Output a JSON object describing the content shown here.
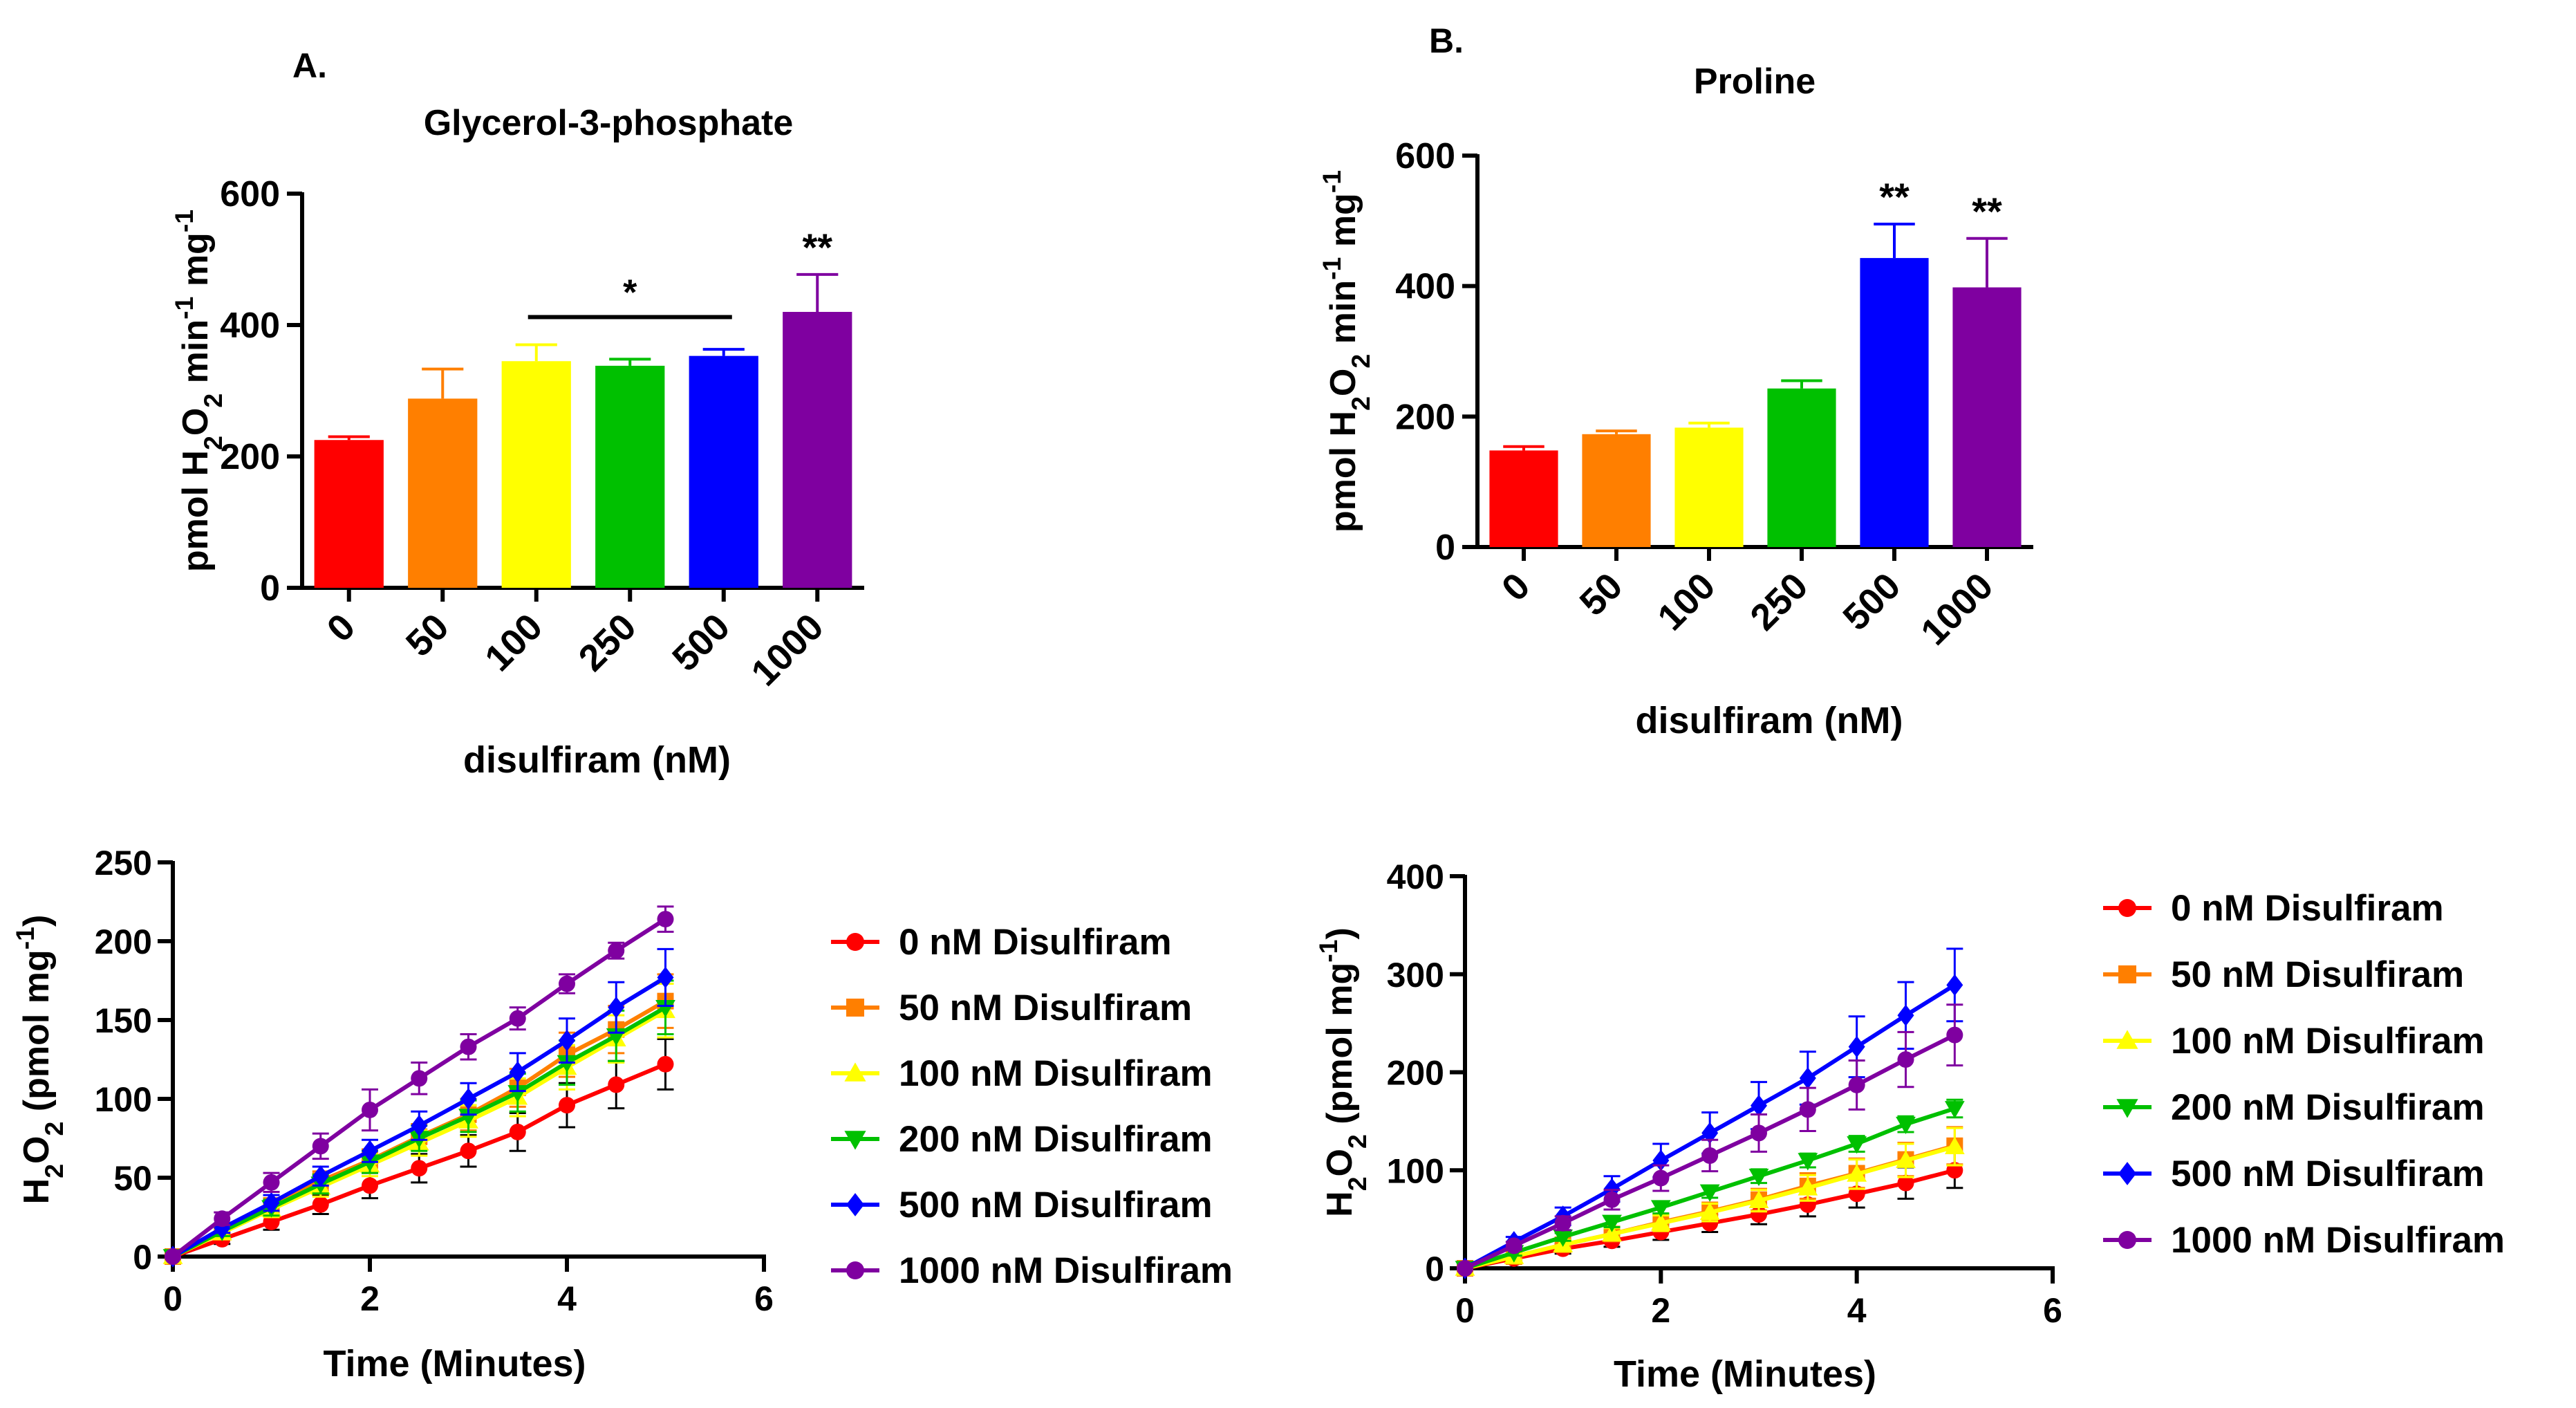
{
  "panel_labels": {
    "a": "A.",
    "b": "B."
  },
  "chart_data": [
    {
      "id": "barA",
      "type": "bar",
      "title": "Glycerol-3-phosphate",
      "xlabel": "disulfiram (nM)",
      "ylabel": "pmol H2O2 min-1 mg-1",
      "categories": [
        "0",
        "50",
        "100",
        "250",
        "500",
        "1000"
      ],
      "values": [
        225,
        288,
        345,
        338,
        353,
        420
      ],
      "errors": [
        5,
        45,
        25,
        10,
        10,
        57
      ],
      "colors": [
        "#ff0000",
        "#ff7f00",
        "#ffff00",
        "#00c000",
        "#0000ff",
        "#7f00a0"
      ],
      "ylim": [
        0,
        600
      ],
      "yticks": [
        0,
        200,
        400,
        600
      ],
      "significance": [
        {
          "label": "*",
          "type": "bracket",
          "from": 2,
          "to": 4
        },
        {
          "label": "**",
          "type": "single",
          "index": 5
        }
      ]
    },
    {
      "id": "barB",
      "type": "bar",
      "title": "Proline",
      "xlabel": "disulfiram (nM)",
      "ylabel": "pmol H2O2 min-1 mg-1",
      "categories": [
        "0",
        "50",
        "100",
        "250",
        "500",
        "1000"
      ],
      "values": [
        148,
        173,
        183,
        243,
        443,
        398
      ],
      "errors": [
        6,
        5,
        7,
        12,
        52,
        75
      ],
      "colors": [
        "#ff0000",
        "#ff7f00",
        "#ffff00",
        "#00c000",
        "#0000ff",
        "#7f00a0"
      ],
      "ylim": [
        0,
        600
      ],
      "yticks": [
        0,
        200,
        400,
        600
      ],
      "significance": [
        {
          "label": "**",
          "type": "single",
          "index": 4
        },
        {
          "label": "**",
          "type": "single",
          "index": 5
        }
      ]
    },
    {
      "id": "lineA",
      "type": "line",
      "xlabel": "Time (Minutes)",
      "ylabel": "H2O2 (pmol mg-1)",
      "x": [
        0,
        0.5,
        1,
        1.5,
        2,
        2.5,
        3,
        3.5,
        4,
        4.5,
        5
      ],
      "xlim": [
        0,
        6
      ],
      "xticks": [
        0,
        2,
        4,
        6
      ],
      "ylim": [
        0,
        250
      ],
      "yticks": [
        0,
        50,
        100,
        150,
        200,
        250
      ],
      "legend_position": "right",
      "series": [
        {
          "name": "0 nM Disulfiram",
          "color": "#ff0000",
          "marker": "circle",
          "values": [
            0,
            11,
            22,
            33,
            45,
            56,
            67,
            79,
            96,
            109,
            122
          ],
          "errors": [
            0,
            3,
            5,
            6,
            8,
            9,
            10,
            12,
            14,
            15,
            16
          ]
        },
        {
          "name": "50 nM Disulfiram",
          "color": "#ff7f00",
          "marker": "square",
          "values": [
            0,
            16,
            32,
            48,
            61,
            76,
            90,
            107,
            128,
            144,
            162
          ],
          "errors": [
            0,
            3,
            5,
            6,
            7,
            8,
            10,
            12,
            14,
            15,
            17
          ]
        },
        {
          "name": "100 nM Disulfiram",
          "color": "#ffff00",
          "marker": "triangle-up",
          "values": [
            0,
            15,
            30,
            44,
            58,
            72,
            86,
            101,
            120,
            138,
            156
          ],
          "errors": [
            0,
            3,
            5,
            6,
            7,
            8,
            10,
            12,
            14,
            15,
            17
          ]
        },
        {
          "name": "200 nM Disulfiram",
          "color": "#00c000",
          "marker": "triangle-down",
          "values": [
            0,
            16,
            31,
            46,
            60,
            75,
            89,
            104,
            123,
            140,
            158
          ],
          "errors": [
            0,
            3,
            5,
            6,
            7,
            8,
            10,
            12,
            14,
            16,
            17
          ]
        },
        {
          "name": "500 nM Disulfiram",
          "color": "#0000ff",
          "marker": "diamond",
          "values": [
            0,
            18,
            34,
            51,
            67,
            83,
            100,
            117,
            137,
            158,
            177
          ],
          "errors": [
            0,
            3,
            5,
            6,
            7,
            9,
            10,
            12,
            14,
            16,
            18
          ]
        },
        {
          "name": "1000 nM Disulfiram",
          "color": "#7f00a0",
          "marker": "circle",
          "values": [
            0,
            24,
            47,
            70,
            93,
            113,
            133,
            151,
            173,
            194,
            214
          ],
          "errors": [
            0,
            4,
            6,
            8,
            13,
            10,
            8,
            7,
            6,
            5,
            8
          ]
        }
      ]
    },
    {
      "id": "lineB",
      "type": "line",
      "xlabel": "Time (Minutes)",
      "ylabel": "H2O2 (pmol mg-1)",
      "x": [
        0,
        0.5,
        1,
        1.5,
        2,
        2.5,
        3,
        3.5,
        4,
        4.5,
        5
      ],
      "xlim": [
        0,
        6
      ],
      "xticks": [
        0,
        2,
        4,
        6
      ],
      "ylim": [
        0,
        400
      ],
      "yticks": [
        0,
        100,
        200,
        300,
        400
      ],
      "legend_position": "right",
      "series": [
        {
          "name": "0 nM Disulfiram",
          "color": "#ff0000",
          "marker": "circle",
          "values": [
            0,
            10,
            20,
            28,
            37,
            46,
            55,
            65,
            76,
            87,
            100
          ],
          "errors": [
            0,
            3,
            5,
            6,
            8,
            9,
            10,
            12,
            14,
            16,
            18
          ]
        },
        {
          "name": "50 nM Disulfiram",
          "color": "#ff7f00",
          "marker": "square",
          "values": [
            0,
            12,
            24,
            35,
            47,
            58,
            70,
            84,
            97,
            111,
            125
          ],
          "errors": [
            0,
            3,
            5,
            6,
            8,
            9,
            11,
            13,
            15,
            17,
            19
          ]
        },
        {
          "name": "100 nM Disulfiram",
          "color": "#ffff00",
          "marker": "triangle-up",
          "values": [
            0,
            12,
            24,
            35,
            46,
            57,
            69,
            82,
            96,
            110,
            124
          ],
          "errors": [
            0,
            3,
            5,
            6,
            8,
            9,
            11,
            13,
            15,
            17,
            19
          ]
        },
        {
          "name": "200 nM Disulfiram",
          "color": "#00c000",
          "marker": "triangle-down",
          "values": [
            0,
            16,
            32,
            47,
            62,
            78,
            94,
            110,
            127,
            147,
            163
          ],
          "errors": [
            0,
            3,
            4,
            5,
            6,
            6,
            7,
            7,
            8,
            8,
            9
          ]
        },
        {
          "name": "500 nM Disulfiram",
          "color": "#0000ff",
          "marker": "diamond",
          "values": [
            0,
            27,
            53,
            81,
            110,
            138,
            166,
            194,
            226,
            258,
            289
          ],
          "errors": [
            0,
            5,
            9,
            13,
            17,
            21,
            24,
            27,
            31,
            34,
            37
          ]
        },
        {
          "name": "1000 nM Disulfiram",
          "color": "#7f00a0",
          "marker": "circle",
          "values": [
            0,
            23,
            46,
            70,
            92,
            115,
            138,
            162,
            187,
            213,
            238
          ],
          "errors": [
            0,
            4,
            7,
            10,
            13,
            16,
            19,
            22,
            25,
            28,
            31
          ]
        }
      ]
    }
  ]
}
